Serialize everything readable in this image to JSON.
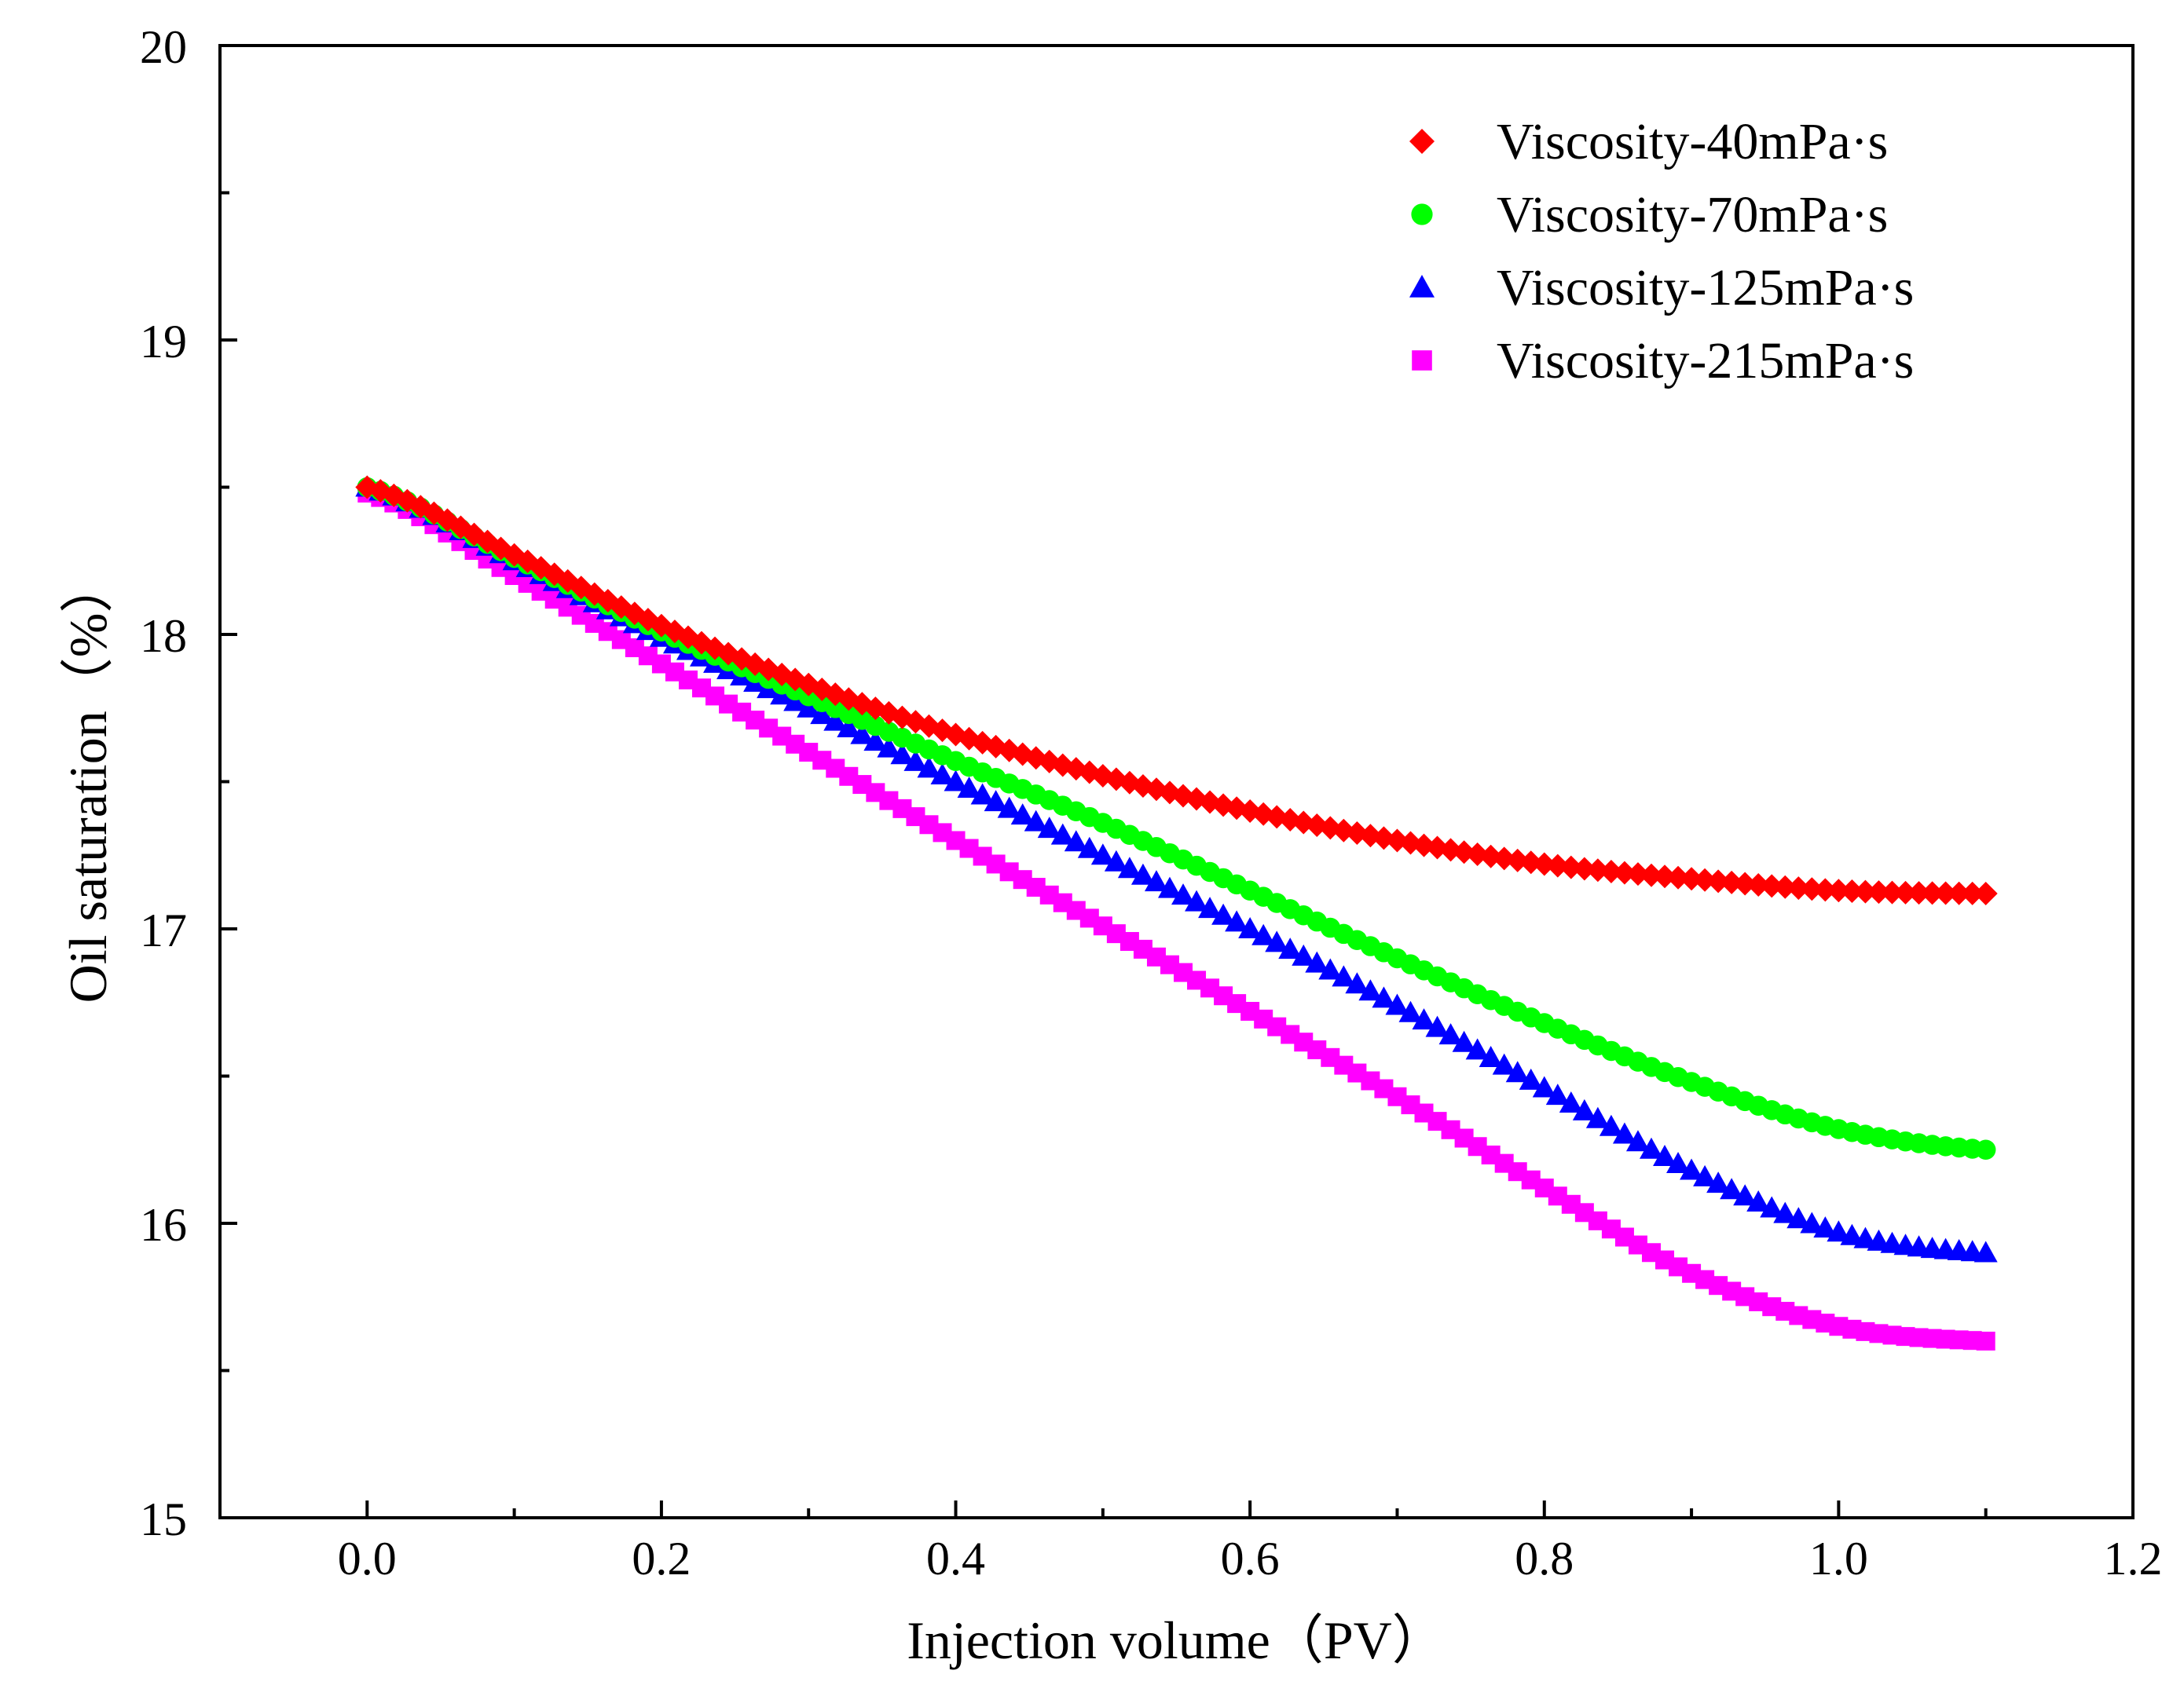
{
  "chart_data": {
    "type": "scatter",
    "xlabel": "Injection volume（PV）",
    "ylabel": "Oil saturation（%）",
    "xlim": [
      -0.1,
      1.2
    ],
    "ylim": [
      15,
      20
    ],
    "xticks": [
      0.0,
      0.2,
      0.4,
      0.6,
      0.8,
      1.0,
      1.2
    ],
    "xtick_labels": [
      "0.0",
      "0.2",
      "0.4",
      "0.6",
      "0.8",
      "1.0",
      "1.2"
    ],
    "yticks": [
      15,
      16,
      17,
      18,
      19,
      20
    ],
    "ytick_labels": [
      "15",
      "16",
      "17",
      "18",
      "19",
      "20"
    ],
    "legend_position": "top-right",
    "grid": false,
    "series": [
      {
        "name": "Viscosity-40mPa·s",
        "color": "#ff0000",
        "marker": "diamond",
        "x": [
          0.0,
          0.1,
          0.2,
          0.3,
          0.4,
          0.5,
          0.6,
          0.7,
          0.8,
          0.9,
          1.0,
          1.1
        ],
        "y": [
          18.5,
          18.27,
          18.03,
          17.83,
          17.66,
          17.52,
          17.4,
          17.3,
          17.22,
          17.17,
          17.13,
          17.12
        ]
      },
      {
        "name": "Viscosity-70mPa·s",
        "color": "#00ff00",
        "marker": "circle",
        "x": [
          0.0,
          0.1,
          0.2,
          0.3,
          0.4,
          0.5,
          0.6,
          0.7,
          0.8,
          0.9,
          1.0,
          1.1
        ],
        "y": [
          18.5,
          18.26,
          18.01,
          17.79,
          17.57,
          17.36,
          17.13,
          16.9,
          16.68,
          16.48,
          16.32,
          16.25
        ]
      },
      {
        "name": "Viscosity-125mPa·s",
        "color": "#0000ff",
        "marker": "triangle",
        "x": [
          0.0,
          0.1,
          0.2,
          0.3,
          0.4,
          0.5,
          0.6,
          0.7,
          0.8,
          0.9,
          1.0,
          1.1
        ],
        "y": [
          18.5,
          18.25,
          17.99,
          17.75,
          17.5,
          17.25,
          17.0,
          16.74,
          16.46,
          16.18,
          15.97,
          15.9
        ]
      },
      {
        "name": "Viscosity-215mPa·s",
        "color": "#ff00ff",
        "marker": "square",
        "x": [
          0.0,
          0.1,
          0.2,
          0.3,
          0.4,
          0.5,
          0.6,
          0.7,
          0.8,
          0.9,
          1.0,
          1.1
        ],
        "y": [
          18.48,
          18.2,
          17.9,
          17.6,
          17.3,
          17.01,
          16.72,
          16.43,
          16.12,
          15.83,
          15.65,
          15.6
        ]
      }
    ]
  }
}
